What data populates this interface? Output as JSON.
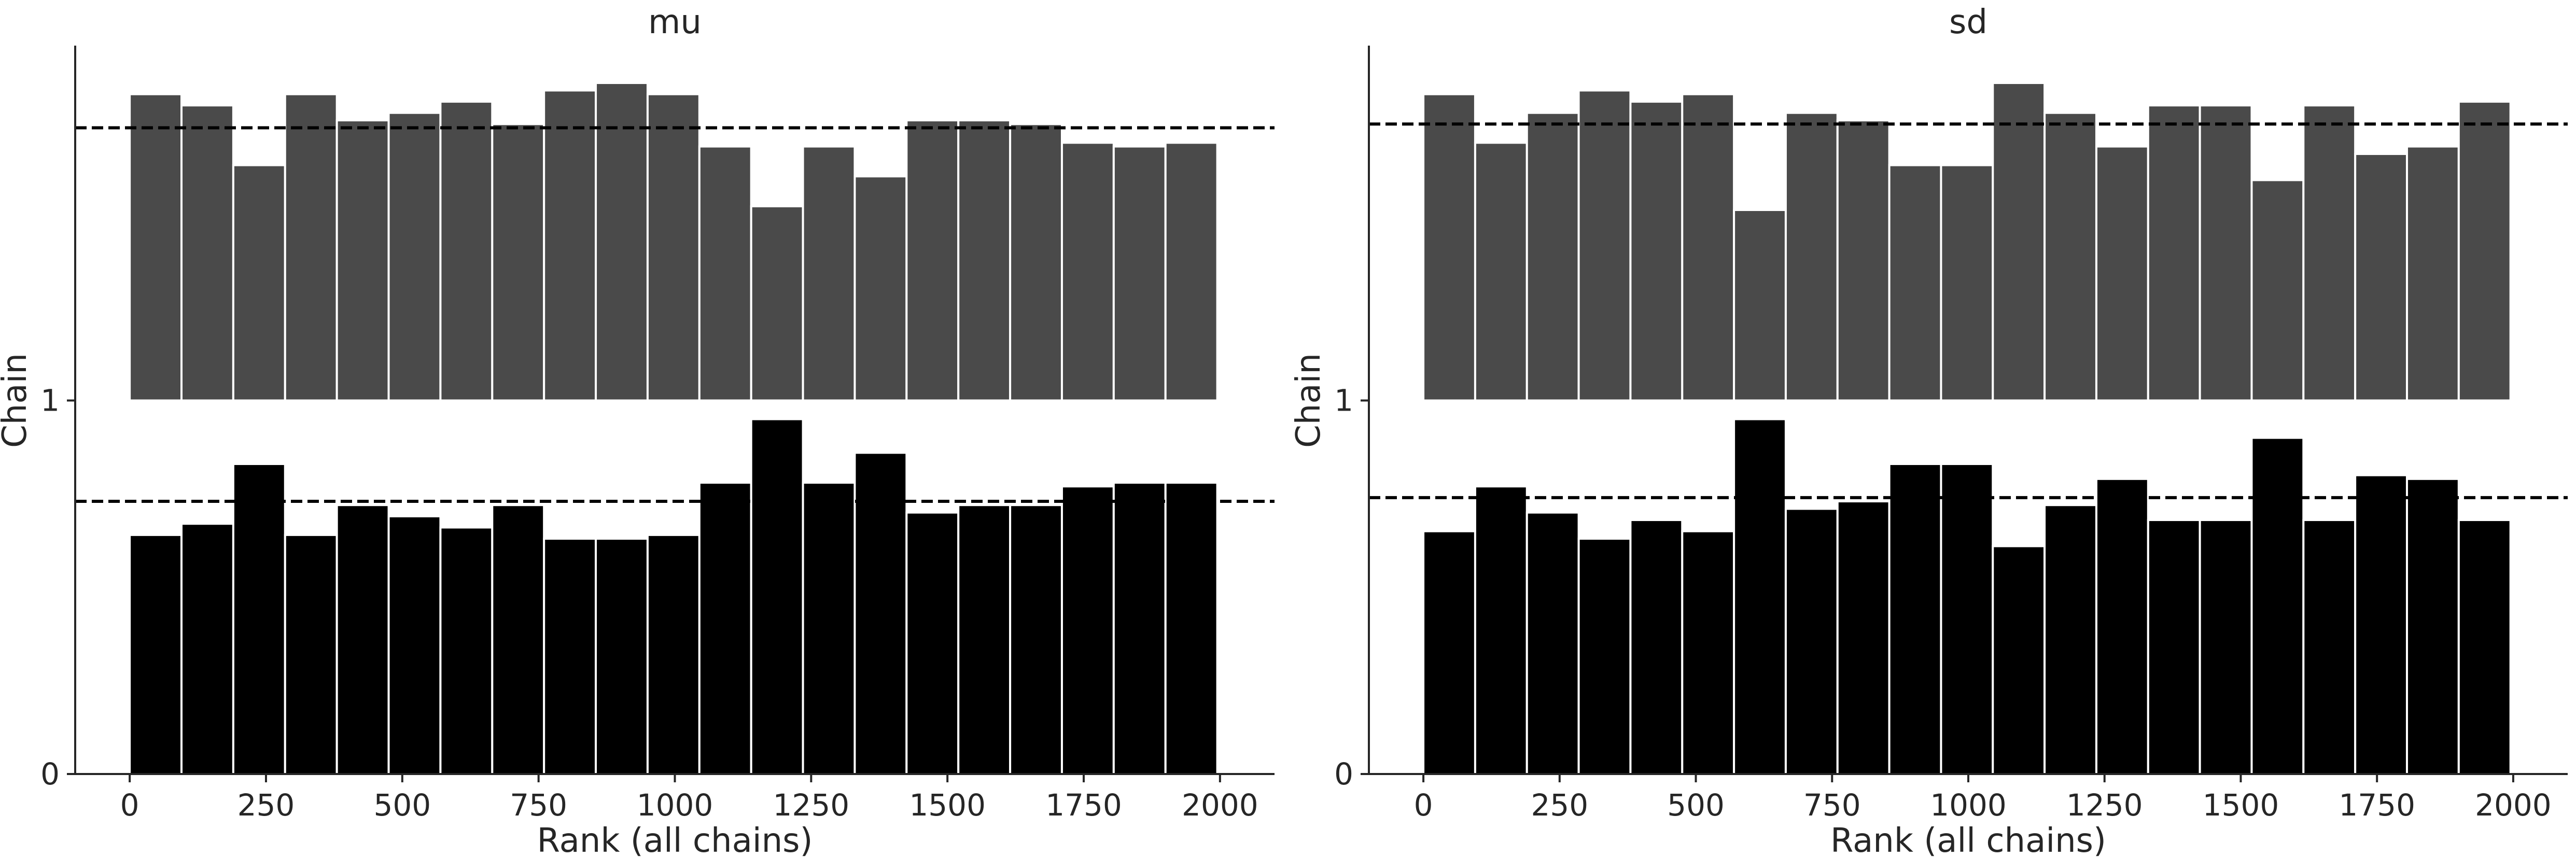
{
  "chart_data": [
    {
      "type": "bar",
      "title": "mu",
      "xlabel": "Rank (all chains)",
      "ylabel": "Chain",
      "x_ticks": [
        0,
        250,
        500,
        750,
        1000,
        1250,
        1500,
        1750,
        2000
      ],
      "y_ticks": [
        0,
        1
      ],
      "xlim": [
        -100,
        2100
      ],
      "ylim": [
        0,
        1.95
      ],
      "bin_edges": [
        0,
        95,
        190,
        285,
        380,
        475,
        570,
        665,
        760,
        855,
        950,
        1045,
        1140,
        1235,
        1330,
        1425,
        1520,
        1615,
        1710,
        1805,
        1900,
        1995
      ],
      "series": [
        {
          "chain": 0,
          "offset": 0,
          "color": "#000000",
          "reference_level": 0.73,
          "values": [
            0.64,
            0.67,
            0.83,
            0.64,
            0.72,
            0.69,
            0.66,
            0.72,
            0.63,
            0.63,
            0.64,
            0.78,
            0.95,
            0.78,
            0.86,
            0.7,
            0.72,
            0.72,
            0.77,
            0.78,
            0.78
          ]
        },
        {
          "chain": 1,
          "offset": 1,
          "color": "#4a4a4a",
          "reference_level": 1.73,
          "values": [
            1.82,
            1.79,
            1.63,
            1.82,
            1.75,
            1.77,
            1.8,
            1.74,
            1.83,
            1.85,
            1.82,
            1.68,
            1.52,
            1.68,
            1.6,
            1.75,
            1.75,
            1.74,
            1.69,
            1.68,
            1.69
          ]
        }
      ]
    },
    {
      "type": "bar",
      "title": "sd",
      "xlabel": "Rank (all chains)",
      "ylabel": "Chain",
      "x_ticks": [
        0,
        250,
        500,
        750,
        1000,
        1250,
        1500,
        1750,
        2000
      ],
      "y_ticks": [
        0,
        1
      ],
      "xlim": [
        -100,
        2100
      ],
      "ylim": [
        0,
        1.95
      ],
      "bin_edges": [
        0,
        95,
        190,
        285,
        380,
        475,
        570,
        665,
        760,
        855,
        950,
        1045,
        1140,
        1235,
        1330,
        1425,
        1520,
        1615,
        1710,
        1805,
        1900,
        1995
      ],
      "series": [
        {
          "chain": 0,
          "offset": 0,
          "color": "#000000",
          "reference_level": 0.74,
          "values": [
            0.65,
            0.77,
            0.7,
            0.63,
            0.68,
            0.65,
            0.95,
            0.71,
            0.73,
            0.83,
            0.83,
            0.61,
            0.72,
            0.79,
            0.68,
            0.68,
            0.9,
            0.68,
            0.8,
            0.79,
            0.68
          ]
        },
        {
          "chain": 1,
          "offset": 1,
          "color": "#4a4a4a",
          "reference_level": 1.74,
          "values": [
            1.82,
            1.69,
            1.77,
            1.83,
            1.8,
            1.82,
            1.51,
            1.77,
            1.75,
            1.63,
            1.63,
            1.85,
            1.77,
            1.68,
            1.79,
            1.79,
            1.59,
            1.79,
            1.66,
            1.68,
            1.8
          ]
        }
      ]
    }
  ]
}
